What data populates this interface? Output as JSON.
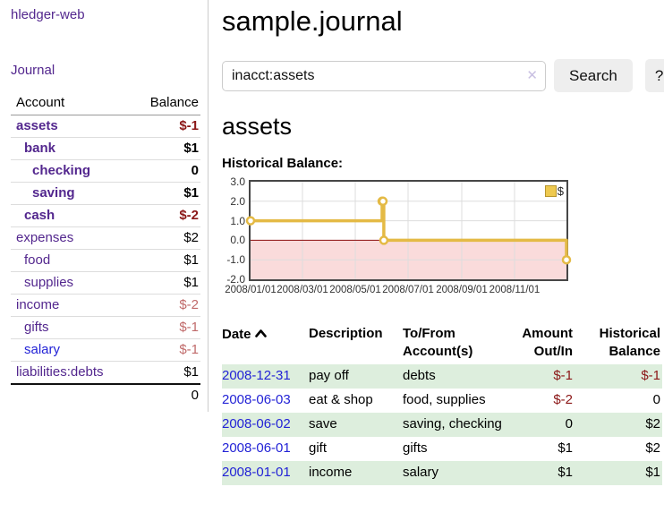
{
  "colors": {
    "purple": "#53278e",
    "blue": "#2323d6",
    "negstrong": "#8b1717",
    "negsoft": "#c06a6a",
    "rowgreen": "#ddeedd",
    "chartline": "#e4ba45",
    "chartpink": "#fadbdb",
    "zerored": "#8b0f0f",
    "legendfill": "#eec94f",
    "legendborder": "#b8962e",
    "gridline": "#dddddd"
  },
  "nav": {
    "brand": "hledger-web",
    "journal": "Journal"
  },
  "sidebar": {
    "header": {
      "account": "Account",
      "balance": "Balance"
    },
    "accounts": [
      {
        "name": "assets",
        "depth": 0,
        "balance": "$-1",
        "bold": true,
        "neg": "strong"
      },
      {
        "name": "bank",
        "depth": 1,
        "balance": "$1",
        "bold": true
      },
      {
        "name": "checking",
        "depth": 2,
        "balance": "0",
        "bold": true
      },
      {
        "name": "saving",
        "depth": 2,
        "balance": "$1",
        "bold": true
      },
      {
        "name": "cash",
        "depth": 1,
        "balance": "$-2",
        "bold": true,
        "neg": "strong"
      },
      {
        "name": "expenses",
        "depth": 0,
        "balance": "$2"
      },
      {
        "name": "food",
        "depth": 1,
        "balance": "$1"
      },
      {
        "name": "supplies",
        "depth": 1,
        "balance": "$1"
      },
      {
        "name": "income",
        "depth": 0,
        "balance": "$-2",
        "neg": "soft"
      },
      {
        "name": "gifts",
        "depth": 1,
        "balance": "$-1",
        "neg": "soft"
      },
      {
        "name": "salary",
        "depth": 1,
        "balance": "$-1",
        "neg": "soft",
        "link": "blue"
      },
      {
        "name": "liabilities:debts",
        "depth": 0,
        "balance": "$1"
      }
    ],
    "total": "0"
  },
  "page": {
    "title": "sample.journal"
  },
  "search": {
    "value": "inacct:assets",
    "clear_icon": "✕",
    "search_button": "Search",
    "help_button": "?"
  },
  "account": {
    "heading": "assets",
    "chart_title": "Historical Balance:"
  },
  "chart_data": {
    "type": "line",
    "step": true,
    "title": "Historical Balance",
    "legend": "$",
    "legend_position": "top-right",
    "grid": true,
    "x_domain": [
      "2008-01-01",
      "2008-12-31"
    ],
    "ylim": [
      -2,
      3
    ],
    "y_ticks": [
      {
        "v": 3,
        "label": "3.0"
      },
      {
        "v": 2,
        "label": "2.0"
      },
      {
        "v": 1,
        "label": "1.0"
      },
      {
        "v": 0,
        "label": "0.0"
      },
      {
        "v": -1,
        "label": "-1.0"
      },
      {
        "v": -2,
        "label": "-2.0"
      }
    ],
    "x_ticks": [
      {
        "date": "2008-01-01",
        "label": "2008/01/01"
      },
      {
        "date": "2008-03-01",
        "label": "2008/03/01"
      },
      {
        "date": "2008-05-01",
        "label": "2008/05/01"
      },
      {
        "date": "2008-07-01",
        "label": "2008/07/01"
      },
      {
        "date": "2008-09-01",
        "label": "2008/09/01"
      },
      {
        "date": "2008-11-01",
        "label": "2008/11/01"
      }
    ],
    "series": [
      {
        "name": "$",
        "points": [
          [
            "2008-01-01",
            1
          ],
          [
            "2008-06-01",
            2
          ],
          [
            "2008-06-02",
            2
          ],
          [
            "2008-06-03",
            0
          ],
          [
            "2008-12-31",
            -1
          ]
        ]
      }
    ],
    "negative_region_shaded": true
  },
  "register": {
    "columns": [
      "Date",
      "Description",
      "To/From Account(s)",
      "Amount Out/In",
      "Historical Balance"
    ],
    "sort": {
      "column": "Date",
      "direction": "ascending"
    },
    "rows": [
      {
        "date": "2008-12-31",
        "description": "pay off",
        "accounts": "debts",
        "amount": "$-1",
        "balance": "$-1"
      },
      {
        "date": "2008-06-03",
        "description": "eat & shop",
        "accounts": "food, supplies",
        "amount": "$-2",
        "balance": "0"
      },
      {
        "date": "2008-06-02",
        "description": "save",
        "accounts": "saving, checking",
        "amount": "0",
        "balance": "$2"
      },
      {
        "date": "2008-06-01",
        "description": "gift",
        "accounts": "gifts",
        "amount": "$1",
        "balance": "$2"
      },
      {
        "date": "2008-01-01",
        "description": "income",
        "accounts": "salary",
        "amount": "$1",
        "balance": "$1"
      }
    ]
  }
}
